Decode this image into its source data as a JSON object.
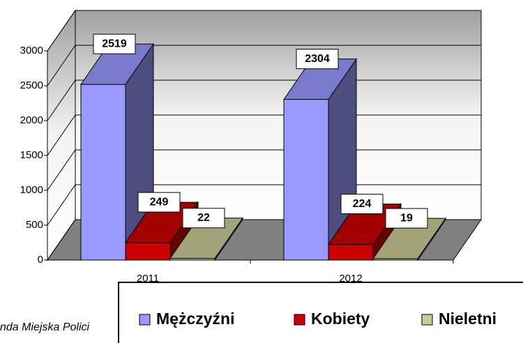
{
  "chart_data": {
    "type": "bar3d",
    "categories": [
      "2011",
      "2012"
    ],
    "series": [
      {
        "name": "Mężczyźni",
        "color": "#9999ff",
        "values": [
          2519,
          2304
        ]
      },
      {
        "name": "Kobiety",
        "color": "#cc0000",
        "values": [
          249,
          224
        ]
      },
      {
        "name": "Nieletni",
        "color": "#cccc99",
        "values": [
          22,
          19
        ]
      }
    ],
    "ylim": [
      0,
      3000
    ],
    "yticks": [
      0,
      500,
      1000,
      1500,
      2000,
      2500,
      3000
    ],
    "grid": true,
    "legend": "bottom-right",
    "source": "nda Miejska Polici"
  }
}
